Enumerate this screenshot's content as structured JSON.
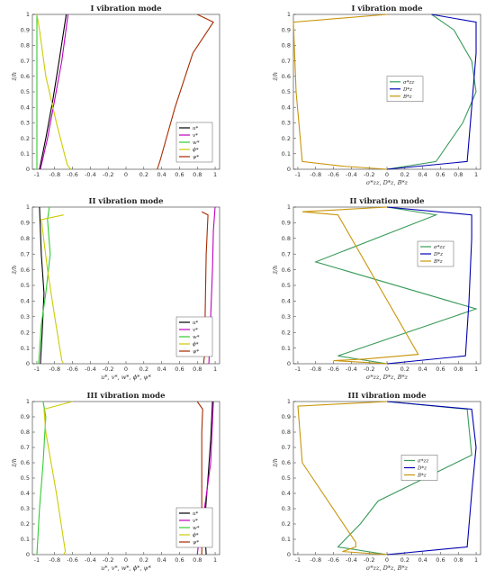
{
  "colors": {
    "u": "#000000",
    "v": "#bf00bf",
    "w": "#33cc33",
    "phi": "#cccc00",
    "psi": "#a52a00",
    "sigma": "#3a9b5a",
    "D": "#0000b3",
    "B": "#c8950a"
  },
  "chart_data": [
    {
      "type": "line",
      "title": "I vibration mode",
      "xlabel": "",
      "ylabel": "z̃/h",
      "xlim": [
        -1.05,
        1.05
      ],
      "ylim": [
        0,
        1
      ],
      "xticks": [
        "-1",
        "-0.8",
        "-0.6",
        "-0.4",
        "-0.2",
        "0",
        "0.2",
        "0.4",
        "0.6",
        "0.8",
        "1"
      ],
      "yticks": [
        "0",
        "0.1",
        "0.2",
        "0.3",
        "0.4",
        "0.5",
        "0.6",
        "0.7",
        "0.8",
        "0.9",
        "1"
      ],
      "legend_position": "bottom-right",
      "series": [
        {
          "name": "u*",
          "color_key": "u",
          "points": [
            [
              -0.97,
              0
            ],
            [
              -0.9,
              0.2
            ],
            [
              -0.82,
              0.45
            ],
            [
              -0.75,
              0.7
            ],
            [
              -0.67,
              1
            ]
          ]
        },
        {
          "name": "v*",
          "color_key": "v",
          "points": [
            [
              -0.96,
              0
            ],
            [
              -0.88,
              0.2
            ],
            [
              -0.8,
              0.45
            ],
            [
              -0.72,
              0.7
            ],
            [
              -0.65,
              1
            ]
          ]
        },
        {
          "name": "w*",
          "color_key": "w",
          "points": [
            [
              -1.0,
              0
            ],
            [
              -1.0,
              0.5
            ],
            [
              -1.0,
              1
            ]
          ]
        },
        {
          "name": "ϕ*",
          "color_key": "phi",
          "points": [
            [
              -0.62,
              0
            ],
            [
              -0.66,
              0.03
            ],
            [
              -0.78,
              0.3
            ],
            [
              -0.9,
              0.6
            ],
            [
              -0.97,
              0.9
            ],
            [
              -1.0,
              1
            ]
          ]
        },
        {
          "name": "ψ*",
          "color_key": "psi",
          "points": [
            [
              0.35,
              0
            ],
            [
              0.38,
              0.05
            ],
            [
              0.55,
              0.4
            ],
            [
              0.75,
              0.75
            ],
            [
              0.98,
              0.95
            ],
            [
              0.8,
              1
            ]
          ]
        }
      ]
    },
    {
      "type": "line",
      "title": "I vibration mode",
      "xlabel": "σ*zz, D*z, B*z",
      "ylabel": "z̃/h",
      "xlim": [
        -1.05,
        1.05
      ],
      "ylim": [
        0,
        1
      ],
      "xticks": [
        "-1",
        "-0.8",
        "-0.6",
        "-0.4",
        "-0.2",
        "0",
        "0.2",
        "0.4",
        "0.6",
        "0.8",
        "1"
      ],
      "yticks": [
        "0",
        "0.1",
        "0.2",
        "0.3",
        "0.4",
        "0.5",
        "0.6",
        "0.7",
        "0.8",
        "0.9",
        "1"
      ],
      "legend_position": "center",
      "series": [
        {
          "name": "σ*zz",
          "color_key": "sigma",
          "points": [
            [
              0,
              0
            ],
            [
              0.55,
              0.05
            ],
            [
              0.85,
              0.3
            ],
            [
              1.0,
              0.5
            ],
            [
              0.95,
              0.7
            ],
            [
              0.75,
              0.9
            ],
            [
              0.5,
              1
            ]
          ]
        },
        {
          "name": "D*z",
          "color_key": "D",
          "points": [
            [
              0,
              0
            ],
            [
              0.9,
              0.05
            ],
            [
              0.95,
              0.4
            ],
            [
              1.0,
              0.75
            ],
            [
              1.0,
              0.95
            ],
            [
              0.5,
              1
            ]
          ]
        },
        {
          "name": "B*z",
          "color_key": "B",
          "points": [
            [
              0,
              0
            ],
            [
              -0.5,
              0.02
            ],
            [
              -0.95,
              0.05
            ],
            [
              -1.02,
              0.5
            ],
            [
              -1.05,
              0.95
            ],
            [
              0,
              1
            ]
          ]
        }
      ]
    },
    {
      "type": "line",
      "title": "II vibration mode",
      "xlabel": "u*, v*, w*, ϕ*, ψ*",
      "ylabel": "z̃/h",
      "xlim": [
        -1.05,
        1.05
      ],
      "ylim": [
        0,
        1
      ],
      "xticks": [
        "-1",
        "-0.8",
        "-0.6",
        "-0.4",
        "-0.2",
        "0",
        "0.2",
        "0.4",
        "0.6",
        "0.8",
        "1"
      ],
      "yticks": [
        "0",
        "0.1",
        "0.2",
        "0.3",
        "0.4",
        "0.5",
        "0.6",
        "0.7",
        "0.8",
        "0.9",
        "1"
      ],
      "legend_position": "bottom-right",
      "series": [
        {
          "name": "u*",
          "color_key": "u",
          "points": [
            [
              -0.96,
              0
            ],
            [
              -0.94,
              0.2
            ],
            [
              -0.92,
              0.45
            ],
            [
              -0.95,
              0.7
            ],
            [
              -0.97,
              1
            ]
          ]
        },
        {
          "name": "v*",
          "color_key": "v",
          "points": [
            [
              0.93,
              0
            ],
            [
              0.95,
              0.3
            ],
            [
              0.97,
              0.6
            ],
            [
              0.98,
              0.85
            ],
            [
              1.0,
              1
            ]
          ]
        },
        {
          "name": "w*",
          "color_key": "w",
          "points": [
            [
              -0.98,
              0
            ],
            [
              -0.95,
              0.25
            ],
            [
              -0.9,
              0.45
            ],
            [
              -0.85,
              0.7
            ],
            [
              -0.88,
              0.92
            ],
            [
              -0.86,
              1
            ]
          ]
        },
        {
          "name": "ϕ*",
          "color_key": "phi",
          "points": [
            [
              -0.7,
              0
            ],
            [
              -0.72,
              0.02
            ],
            [
              -0.8,
              0.3
            ],
            [
              -0.88,
              0.6
            ],
            [
              -0.95,
              0.92
            ],
            [
              -0.7,
              0.95
            ]
          ]
        },
        {
          "name": "ψ*",
          "color_key": "psi",
          "points": [
            [
              0.87,
              0
            ],
            [
              0.88,
              0.05
            ],
            [
              0.89,
              0.4
            ],
            [
              0.9,
              0.7
            ],
            [
              0.92,
              0.95
            ],
            [
              0.85,
              0.97
            ]
          ]
        }
      ]
    },
    {
      "type": "line",
      "title": "II vibration mode",
      "xlabel": "σ*zz, D*z, B*z",
      "ylabel": "z̃/h",
      "xlim": [
        -1.05,
        1.05
      ],
      "ylim": [
        0,
        1
      ],
      "xticks": [
        "-1",
        "-0.8",
        "-0.6",
        "-0.4",
        "-0.2",
        "0",
        "0.2",
        "0.4",
        "0.6",
        "0.8",
        "1"
      ],
      "yticks": [
        "0",
        "0.1",
        "0.2",
        "0.3",
        "0.4",
        "0.5",
        "0.6",
        "0.7",
        "0.8",
        "0.9",
        "1"
      ],
      "legend_position": "top-right",
      "series": [
        {
          "name": "σ*zz",
          "color_key": "sigma",
          "points": [
            [
              0,
              0
            ],
            [
              -0.55,
              0.05
            ],
            [
              1.0,
              0.35
            ],
            [
              -0.8,
              0.65
            ],
            [
              0.55,
              0.95
            ],
            [
              0,
              1
            ]
          ]
        },
        {
          "name": "D*z",
          "color_key": "D",
          "points": [
            [
              0,
              0
            ],
            [
              0.88,
              0.05
            ],
            [
              0.92,
              0.4
            ],
            [
              0.95,
              0.8
            ],
            [
              0.95,
              0.95
            ],
            [
              0,
              1
            ]
          ]
        },
        {
          "name": "B*z",
          "color_key": "B",
          "points": [
            [
              0,
              0
            ],
            [
              -0.6,
              0.02
            ],
            [
              -0.25,
              0.03
            ],
            [
              0.35,
              0.06
            ],
            [
              -0.55,
              0.95
            ],
            [
              -0.95,
              0.97
            ],
            [
              0,
              1
            ]
          ]
        }
      ]
    },
    {
      "type": "line",
      "title": "III vibration mode",
      "xlabel": "u*, v*, w*, ϕ*, ψ*",
      "ylabel": "z̃/h",
      "xlim": [
        -1.05,
        1.05
      ],
      "ylim": [
        0,
        1
      ],
      "xticks": [
        "-1",
        "-0.8",
        "-0.6",
        "-0.4",
        "-0.2",
        "0",
        "0.2",
        "0.4",
        "0.6",
        "0.8",
        "1"
      ],
      "yticks": [
        "0",
        "0.1",
        "0.2",
        "0.3",
        "0.4",
        "0.5",
        "0.6",
        "0.7",
        "0.8",
        "0.9",
        "1"
      ],
      "legend_position": "bottom-right",
      "series": [
        {
          "name": "u*",
          "color_key": "u",
          "points": [
            [
              0.9,
              0
            ],
            [
              0.88,
              0.2
            ],
            [
              0.92,
              0.5
            ],
            [
              0.95,
              0.75
            ],
            [
              0.97,
              1
            ]
          ]
        },
        {
          "name": "v*",
          "color_key": "v",
          "points": [
            [
              0.8,
              0
            ],
            [
              0.82,
              0.1
            ],
            [
              0.88,
              0.3
            ],
            [
              0.95,
              0.6
            ],
            [
              0.98,
              1
            ]
          ]
        },
        {
          "name": "w*",
          "color_key": "w",
          "points": [
            [
              -1.0,
              0
            ],
            [
              -0.97,
              0.3
            ],
            [
              -0.93,
              0.6
            ],
            [
              -0.9,
              0.9
            ],
            [
              -0.93,
              1
            ]
          ]
        },
        {
          "name": "ϕ*",
          "color_key": "phi",
          "points": [
            [
              -0.7,
              0
            ],
            [
              -0.68,
              0.02
            ],
            [
              -0.78,
              0.4
            ],
            [
              -0.9,
              0.8
            ],
            [
              -0.92,
              0.95
            ],
            [
              -0.6,
              1
            ]
          ]
        },
        {
          "name": "ψ*",
          "color_key": "psi",
          "points": [
            [
              0.85,
              0
            ],
            [
              0.85,
              0.4
            ],
            [
              0.85,
              0.8
            ],
            [
              0.86,
              0.95
            ],
            [
              0.8,
              1
            ]
          ]
        }
      ]
    },
    {
      "type": "line",
      "title": "III vibration mode",
      "xlabel": "σ*zz, D*z, B*z",
      "ylabel": "z̃/h",
      "xlim": [
        -1.05,
        1.05
      ],
      "ylim": [
        0,
        1
      ],
      "xticks": [
        "-1",
        "-0.8",
        "-0.6",
        "-0.4",
        "-0.2",
        "0",
        "0.2",
        "0.4",
        "0.6",
        "0.8",
        "1"
      ],
      "yticks": [
        "0",
        "0.1",
        "0.2",
        "0.3",
        "0.4",
        "0.5",
        "0.6",
        "0.7",
        "0.8",
        "0.9",
        "1"
      ],
      "legend_position": "center-right",
      "series": [
        {
          "name": "σ*zz",
          "color_key": "sigma",
          "points": [
            [
              0,
              0
            ],
            [
              -0.55,
              0.05
            ],
            [
              -0.3,
              0.2
            ],
            [
              -0.1,
              0.35
            ],
            [
              0.95,
              0.65
            ],
            [
              0.9,
              0.95
            ],
            [
              0,
              1
            ]
          ]
        },
        {
          "name": "D*z",
          "color_key": "D",
          "points": [
            [
              0,
              0
            ],
            [
              0.9,
              0.05
            ],
            [
              0.95,
              0.4
            ],
            [
              1.0,
              0.7
            ],
            [
              0.95,
              0.95
            ],
            [
              0,
              1
            ]
          ]
        },
        {
          "name": "B*z",
          "color_key": "B",
          "points": [
            [
              0,
              0
            ],
            [
              -0.5,
              0.02
            ],
            [
              -0.35,
              0.05
            ],
            [
              -0.35,
              0.08
            ],
            [
              -0.95,
              0.6
            ],
            [
              -1.0,
              0.97
            ],
            [
              0,
              1
            ]
          ]
        }
      ]
    }
  ]
}
